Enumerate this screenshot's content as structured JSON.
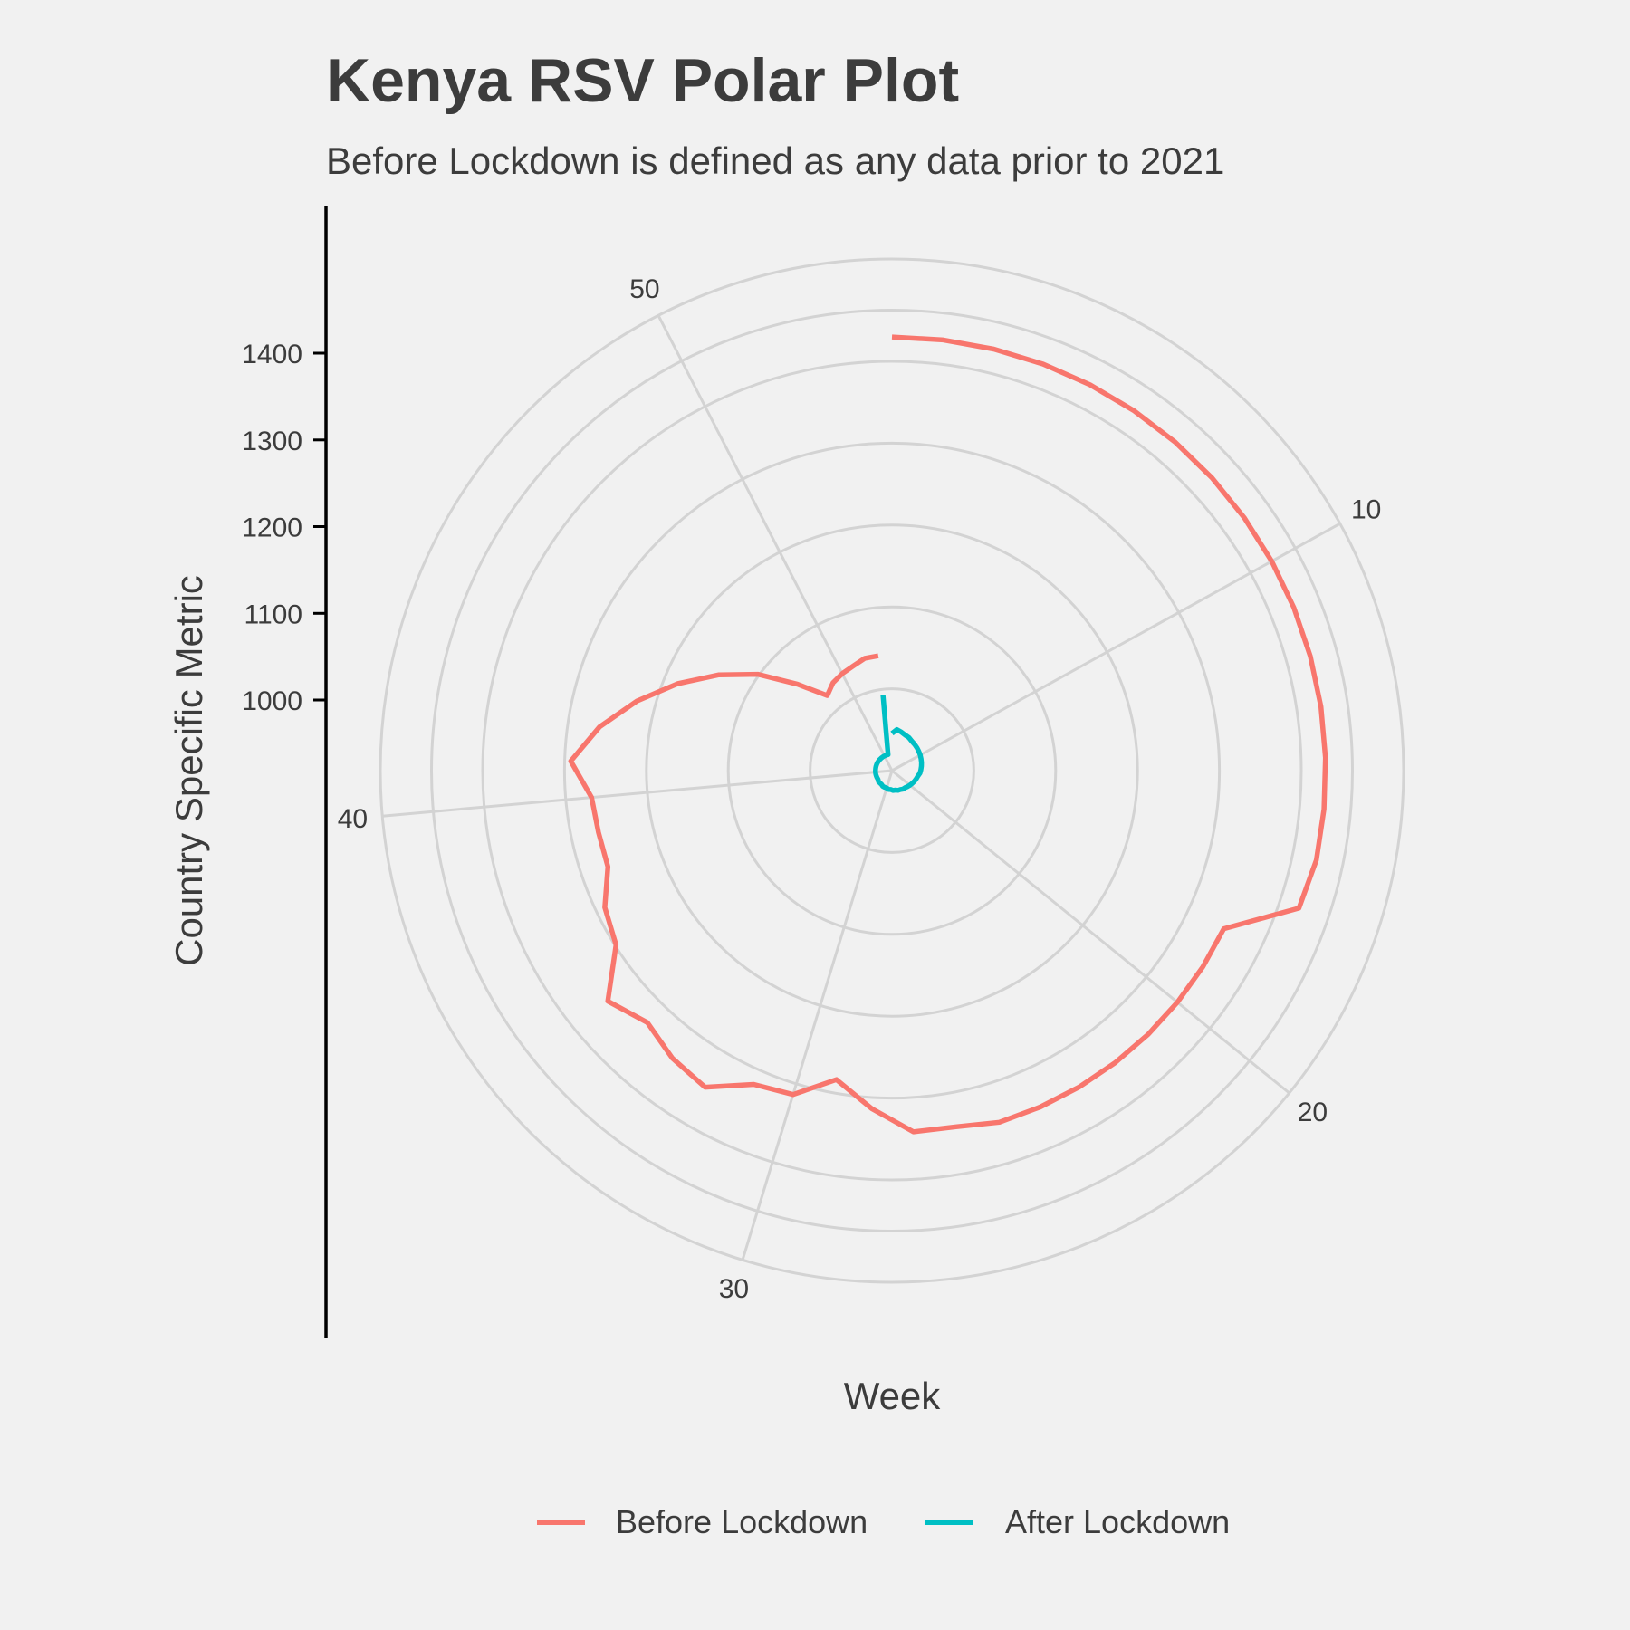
{
  "chart_data": {
    "type": "line",
    "coord": "polar",
    "title": "Kenya RSV Polar Plot",
    "subtitle": "Before Lockdown is defined as any data prior to 2021",
    "xlabel": "Week",
    "ylabel": "Country Specific Metric",
    "theta_ticks": [
      10,
      20,
      30,
      40,
      50
    ],
    "theta_range": [
      1,
      53
    ],
    "y_ticks": [
      1000,
      1100,
      1200,
      1300,
      1400
    ],
    "y_range": [
      920,
      1490
    ],
    "grid": true,
    "legend_position": "bottom",
    "series": [
      {
        "name": "Before Lockdown",
        "color": "#F8766D",
        "x": [
          1,
          2,
          3,
          4,
          5,
          6,
          7,
          8,
          9,
          10,
          11,
          12,
          13,
          14,
          15,
          16,
          17,
          18,
          19,
          20,
          21,
          22,
          23,
          24,
          25,
          26,
          27,
          28,
          29,
          30,
          31,
          32,
          33,
          34,
          35,
          36,
          37,
          38,
          39,
          40,
          41,
          42,
          43,
          44,
          45,
          46,
          47,
          48,
          49,
          50,
          51,
          52,
          53
        ],
        "y": [
          1445,
          1445,
          1445,
          1445,
          1445,
          1445,
          1445,
          1445,
          1445,
          1445,
          1445,
          1445,
          1445,
          1445,
          1445,
          1445,
          1440,
          1365,
          1365,
          1365,
          1365,
          1365,
          1365,
          1365,
          1365,
          1358,
          1358,
          1330,
          1300,
          1330,
          1335,
          1365,
          1358,
          1345,
          1363,
          1315,
          1305,
          1283,
          1283,
          1285,
          1309,
          1278,
          1240,
          1200,
          1160,
          1120,
          1075,
          1040,
          1048,
          1052,
          1055,
          1060,
          1060
        ]
      },
      {
        "name": "After Lockdown",
        "color": "#00BFC4",
        "x": [
          1,
          2,
          3,
          4,
          5,
          6,
          7,
          8,
          9,
          10,
          11,
          12,
          13,
          14,
          15,
          16,
          17,
          18,
          19,
          20,
          21,
          22,
          23,
          24,
          25,
          26,
          27,
          28,
          29,
          30,
          31,
          32,
          33,
          34,
          35,
          36,
          37,
          38,
          39,
          40,
          41,
          42,
          43,
          44,
          45,
          46,
          47,
          48,
          49,
          50,
          51,
          52,
          53
        ],
        "y": [
          965,
          970,
          968,
          966,
          965,
          963,
          962,
          961,
          960,
          959,
          958,
          957,
          956,
          955,
          954,
          952,
          951,
          950,
          949,
          948,
          947,
          946,
          946,
          945,
          945,
          944,
          944,
          943,
          943,
          942,
          942,
          942,
          941,
          941,
          941,
          940,
          940,
          940,
          940,
          940,
          940,
          940,
          940,
          940,
          940,
          940,
          940,
          940,
          940,
          940,
          940,
          940,
          1012
        ]
      }
    ]
  }
}
